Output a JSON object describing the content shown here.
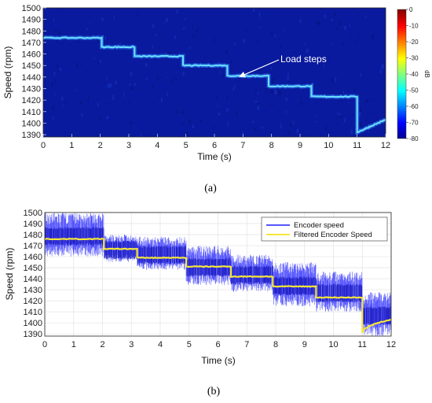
{
  "chart_data": [
    {
      "type": "heatmap",
      "caption": "(a)",
      "xlabel": "Time (s)",
      "ylabel": "Speed (rpm)",
      "xlim": [
        0,
        12
      ],
      "ylim": [
        1388,
        1500
      ],
      "xticks": [
        "0",
        "1",
        "2",
        "3",
        "4",
        "5",
        "6",
        "7",
        "8",
        "9",
        "10",
        "11",
        "12"
      ],
      "yticks": [
        "1390",
        "1400",
        "1410",
        "1420",
        "1430",
        "1440",
        "1450",
        "1460",
        "1470",
        "1480",
        "1490",
        "1500"
      ],
      "background_color": "#0a1a9e",
      "line_color": "#6fe0ff",
      "colorbar": {
        "label": "dB",
        "range": [
          -80,
          0
        ],
        "ticks": [
          "0",
          "-10",
          "-20",
          "-30",
          "-40",
          "-50",
          "-60",
          "-70",
          "-80"
        ]
      },
      "annotation": {
        "text": "Load steps",
        "x": 6.8,
        "y": 1441
      },
      "speed_steps": [
        {
          "t0": 0,
          "t1": 2.05,
          "speed": 1474
        },
        {
          "t0": 2.05,
          "t1": 3.2,
          "speed": 1466
        },
        {
          "t0": 3.2,
          "t1": 4.9,
          "speed": 1458
        },
        {
          "t0": 4.9,
          "t1": 6.45,
          "speed": 1450
        },
        {
          "t0": 6.45,
          "t1": 7.9,
          "speed": 1441
        },
        {
          "t0": 7.9,
          "t1": 9.4,
          "speed": 1432
        },
        {
          "t0": 9.4,
          "t1": 11.0,
          "speed": 1423
        },
        {
          "t0": 11.0,
          "t1": 12.0,
          "speed": 1392,
          "end_speed": 1403
        }
      ]
    },
    {
      "type": "line",
      "caption": "(b)",
      "xlabel": "Time (s)",
      "ylabel": "Speed (rpm)",
      "xlim": [
        0,
        12
      ],
      "ylim": [
        1388,
        1500
      ],
      "grid": true,
      "legend_position": "top-right",
      "xticks": [
        "0",
        "1",
        "2",
        "3",
        "4",
        "5",
        "6",
        "7",
        "8",
        "9",
        "10",
        "11",
        "12"
      ],
      "yticks": [
        "1390",
        "1400",
        "1410",
        "1420",
        "1430",
        "1440",
        "1450",
        "1460",
        "1470",
        "1480",
        "1490",
        "1500"
      ],
      "series": [
        {
          "name": "Encoder speed",
          "color": "#1f1fff",
          "band": [
            {
              "t0": 0,
              "t1": 2.05,
              "low": 1460,
              "high": 1500
            },
            {
              "t0": 2.05,
              "t1": 3.2,
              "low": 1455,
              "high": 1480
            },
            {
              "t0": 3.2,
              "t1": 4.9,
              "low": 1448,
              "high": 1478
            },
            {
              "t0": 4.9,
              "t1": 6.45,
              "low": 1434,
              "high": 1470
            },
            {
              "t0": 6.45,
              "t1": 7.9,
              "low": 1428,
              "high": 1462
            },
            {
              "t0": 7.9,
              "t1": 9.4,
              "low": 1415,
              "high": 1455
            },
            {
              "t0": 9.4,
              "t1": 11.0,
              "low": 1410,
              "high": 1447
            },
            {
              "t0": 11.0,
              "t1": 12.0,
              "low": 1388,
              "high": 1428
            }
          ]
        },
        {
          "name": "Filtered Encoder Speed",
          "color": "#f5e63a",
          "steps": [
            {
              "t0": 0,
              "t1": 2.05,
              "speed": 1476
            },
            {
              "t0": 2.05,
              "t1": 3.2,
              "speed": 1467
            },
            {
              "t0": 3.2,
              "t1": 4.9,
              "speed": 1459
            },
            {
              "t0": 4.9,
              "t1": 6.45,
              "speed": 1451
            },
            {
              "t0": 6.45,
              "t1": 7.9,
              "speed": 1442
            },
            {
              "t0": 7.9,
              "t1": 9.4,
              "speed": 1433
            },
            {
              "t0": 9.4,
              "t1": 11.0,
              "speed": 1423
            },
            {
              "t0": 11.0,
              "t1": 12.0,
              "speed": 1391,
              "end_speed": 1403
            }
          ]
        }
      ]
    }
  ]
}
